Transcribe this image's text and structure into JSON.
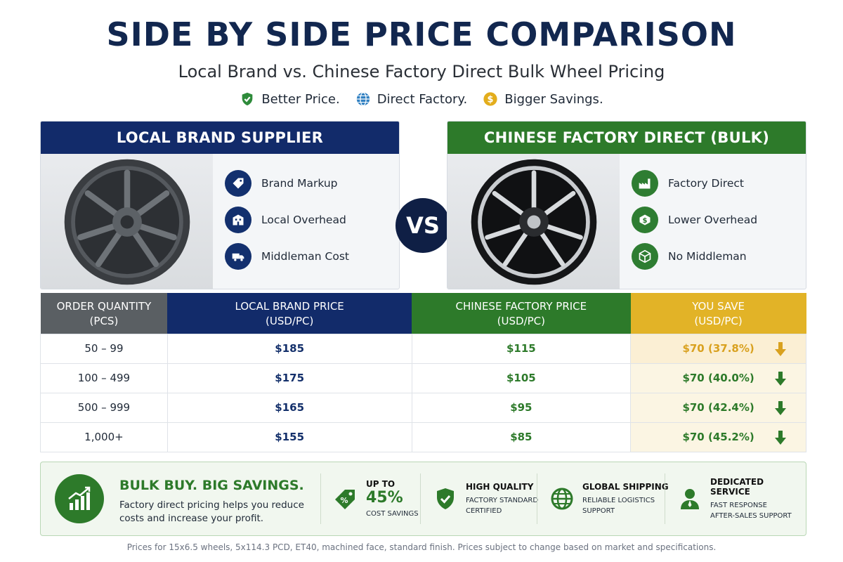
{
  "header": {
    "title": "SIDE BY SIDE PRICE COMPARISON",
    "subtitle": "Local Brand vs. Chinese Factory Direct Bulk Wheel Pricing",
    "taglines": [
      "Better Price.",
      "Direct Factory.",
      "Bigger Savings."
    ]
  },
  "local_panel": {
    "heading": "LOCAL BRAND SUPPLIER",
    "features": [
      {
        "label": "Brand Markup",
        "icon": "tag-icon"
      },
      {
        "label": "Local Overhead",
        "icon": "building-icon"
      },
      {
        "label": "Middleman Cost",
        "icon": "truck-icon"
      }
    ]
  },
  "vs_label": "VS",
  "factory_panel": {
    "heading": "CHINESE FACTORY DIRECT (BULK)",
    "features": [
      {
        "label": "Factory Direct",
        "icon": "factory-icon"
      },
      {
        "label": "Lower Overhead",
        "icon": "dollar-icon"
      },
      {
        "label": "No Middleman",
        "icon": "box-icon"
      }
    ]
  },
  "table": {
    "headers": [
      {
        "line1": "ORDER QUANTITY",
        "line2": "(PCS)"
      },
      {
        "line1": "LOCAL BRAND PRICE",
        "line2": "(USD/PC)"
      },
      {
        "line1": "CHINESE FACTORY PRICE",
        "line2": "(USD/PC)"
      },
      {
        "line1": "YOU SAVE",
        "line2": "(USD/PC)"
      }
    ],
    "rows": [
      {
        "qty": "50 – 99",
        "local": "$185",
        "factory": "$115",
        "save": "$70 (37.8%)"
      },
      {
        "qty": "100 – 499",
        "local": "$175",
        "factory": "$105",
        "save": "$70 (40.0%)"
      },
      {
        "qty": "500 – 999",
        "local": "$165",
        "factory": "$95",
        "save": "$70 (42.4%)"
      },
      {
        "qty": "1,000+",
        "local": "$155",
        "factory": "$85",
        "save": "$70 (45.2%)"
      }
    ]
  },
  "footer": {
    "title": "BULK BUY. BIG SAVINGS.",
    "description": "Factory direct pricing helps you reduce costs and increase your profit.",
    "stats": [
      {
        "icon": "price-tag-icon",
        "line1": "UP TO",
        "big": "45%",
        "line2": "COST SAVINGS"
      },
      {
        "icon": "shield-check-icon",
        "line1": "HIGH QUALITY",
        "line2": "FACTORY STANDARD",
        "line3": "CERTIFIED"
      },
      {
        "icon": "globe-icon",
        "line1": "GLOBAL SHIPPING",
        "line2": "RELIABLE LOGISTICS",
        "line3": "SUPPORT"
      },
      {
        "icon": "person-icon",
        "line1": "DEDICATED SERVICE",
        "line2": "FAST RESPONSE",
        "line3": "AFTER-SALES SUPPORT"
      }
    ]
  },
  "disclaimer": "Prices for 15x6.5 wheels, 5x114.3 PCD, ET40, machined face, standard finish. Prices subject to change based on market and specifications.",
  "colors": {
    "navy": "#122b6a",
    "green": "#2d7a2a",
    "gold": "#e2b327",
    "gray": "#5a5f63"
  }
}
